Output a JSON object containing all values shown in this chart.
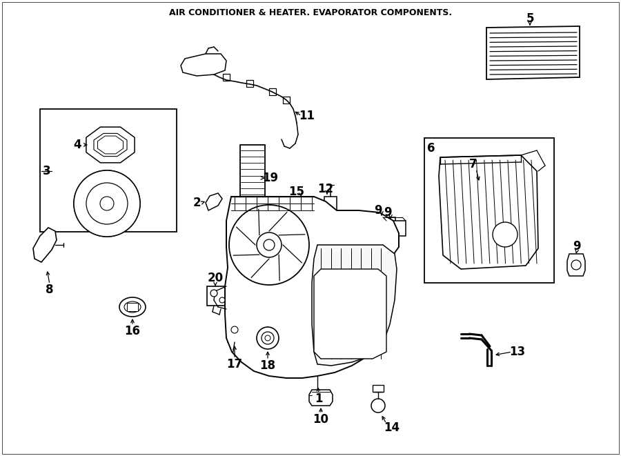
{
  "title": "AIR CONDITIONER & HEATER. EVAPORATOR COMPONENTS.",
  "bg_color": "#ffffff",
  "line_color": "#000000",
  "figsize": [
    9.0,
    6.61
  ],
  "dpi": 100
}
